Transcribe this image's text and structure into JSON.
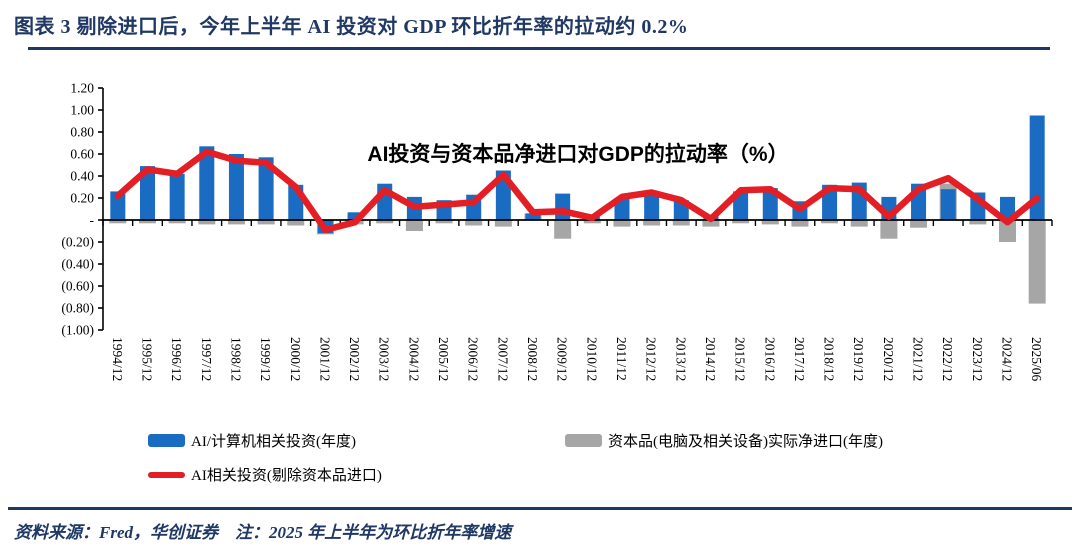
{
  "page": {
    "title": "图表 3  剔除进口后，今年上半年 AI 投资对 GDP 环比折年率的拉动约 0.2%",
    "source_note": "资料来源：Fred，华创证券　注：2025 年上半年为环比折年率增速"
  },
  "chart_data": {
    "type": "bar",
    "subtype": "bars-with-line-overlay",
    "title": "AI投资与资本品净进口对GDP的拉动率（%）",
    "xlabel": "",
    "ylabel": "",
    "ylim": [
      -1.0,
      1.2
    ],
    "ytick_step": 0.2,
    "ytick_labels": [
      "1.20",
      "1.00",
      "0.80",
      "0.60",
      "0.40",
      "0.20",
      "-",
      "(0.20)",
      "(0.40)",
      "(0.60)",
      "(0.80)",
      "(1.00)"
    ],
    "grid": false,
    "legend_position": "bottom",
    "categories": [
      "1994/12",
      "1995/12",
      "1996/12",
      "1997/12",
      "1998/12",
      "1999/12",
      "2000/12",
      "2001/12",
      "2002/12",
      "2003/12",
      "2004/12",
      "2005/12",
      "2006/12",
      "2007/12",
      "2008/12",
      "2009/12",
      "2010/12",
      "2011/12",
      "2012/12",
      "2013/12",
      "2014/12",
      "2015/12",
      "2016/12",
      "2017/12",
      "2018/12",
      "2019/12",
      "2020/12",
      "2021/12",
      "2022/12",
      "2023/12",
      "2024/12",
      "2025/06"
    ],
    "series": [
      {
        "name": "AI/计算机相关投资(年度)",
        "type": "bar",
        "color": "#1A6BC2",
        "values": [
          0.26,
          0.49,
          0.42,
          0.67,
          0.6,
          0.57,
          0.32,
          -0.12,
          0.07,
          0.33,
          0.21,
          0.18,
          0.23,
          0.45,
          0.06,
          0.24,
          0.04,
          0.2,
          0.24,
          0.18,
          0.04,
          0.26,
          0.29,
          0.17,
          0.32,
          0.34,
          0.21,
          0.33,
          0.28,
          0.25,
          0.21,
          0.95
        ]
      },
      {
        "name": "资本品(电脑及相关设备)实际净进口(年度)",
        "type": "bar",
        "color": "#A6A6A6",
        "values": [
          -0.03,
          -0.03,
          -0.03,
          -0.04,
          -0.04,
          -0.04,
          -0.05,
          -0.13,
          -0.04,
          -0.03,
          -0.1,
          -0.03,
          -0.05,
          -0.06,
          0.06,
          -0.17,
          -0.03,
          -0.06,
          -0.05,
          -0.05,
          -0.06,
          -0.03,
          -0.04,
          -0.06,
          -0.03,
          -0.06,
          -0.17,
          -0.07,
          0.33,
          -0.04,
          -0.2,
          -0.76
        ]
      },
      {
        "name": "AI相关投资(剔除资本品进口)",
        "type": "line",
        "color": "#E31E25",
        "values": [
          0.22,
          0.46,
          0.42,
          0.62,
          0.54,
          0.52,
          0.3,
          -0.09,
          -0.02,
          0.27,
          0.12,
          0.14,
          0.16,
          0.41,
          0.07,
          0.08,
          0.02,
          0.21,
          0.25,
          0.18,
          0.01,
          0.27,
          0.28,
          0.1,
          0.29,
          0.28,
          0.03,
          0.28,
          0.38,
          0.19,
          -0.02,
          0.2
        ]
      }
    ],
    "axis_color": "#000000"
  }
}
